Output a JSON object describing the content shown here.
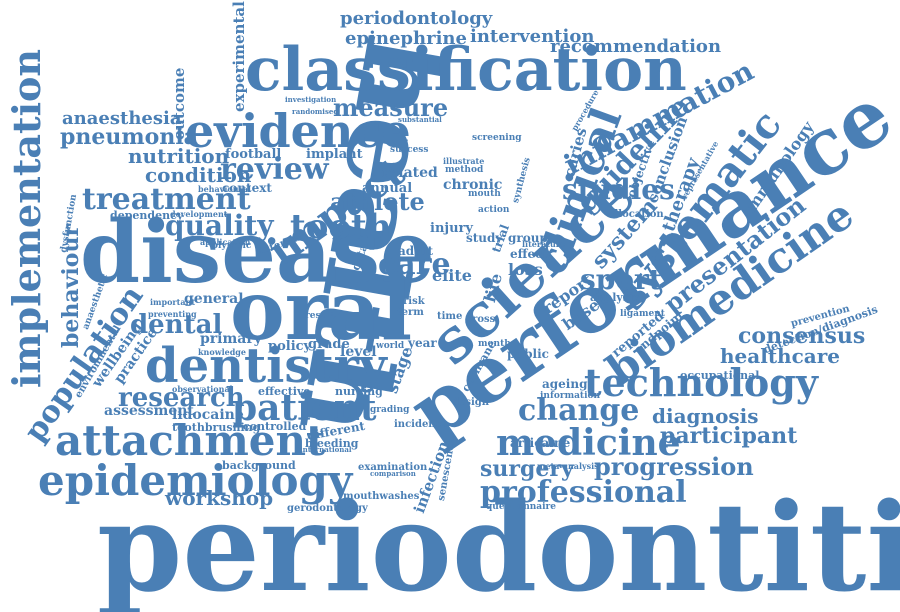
{
  "colors": {
    "word": "#4a7fb5",
    "background": "#ffffff"
  },
  "words": [
    {
      "id": "periodontitis",
      "text": "periodontitis"
    },
    {
      "id": "health",
      "text": "health"
    },
    {
      "id": "performance",
      "text": "performance"
    },
    {
      "id": "disease",
      "text": "disease"
    },
    {
      "id": "classification",
      "text": "classification"
    },
    {
      "id": "oral",
      "text": "oral"
    },
    {
      "id": "science",
      "text": "science"
    },
    {
      "id": "dentistry",
      "text": "dentistry"
    },
    {
      "id": "biomedicine",
      "text": "biomedicine"
    },
    {
      "id": "implementation",
      "text": "implementation"
    },
    {
      "id": "attachment",
      "text": "attachment"
    },
    {
      "id": "epidemiology",
      "text": "epidemiology"
    },
    {
      "id": "evidence",
      "text": "evidence"
    },
    {
      "id": "technology",
      "text": "technology"
    },
    {
      "id": "medicine",
      "text": "medicine"
    },
    {
      "id": "population",
      "text": "population"
    },
    {
      "id": "patient",
      "text": "patient"
    },
    {
      "id": "impact",
      "text": "impact"
    },
    {
      "id": "clinical",
      "text": "clinical"
    },
    {
      "id": "systematic",
      "text": "systematic"
    },
    {
      "id": "treatment",
      "text": "treatment"
    },
    {
      "id": "tooth",
      "text": "tooth"
    },
    {
      "id": "professional",
      "text": "professional"
    },
    {
      "id": "change",
      "text": "change"
    },
    {
      "id": "review",
      "text": "review"
    },
    {
      "id": "inflammation",
      "text": "inflammation"
    },
    {
      "id": "guideline",
      "text": "guideline"
    },
    {
      "id": "studies",
      "text": "studies"
    },
    {
      "id": "research",
      "text": "research"
    },
    {
      "id": "quality",
      "text": "quality"
    },
    {
      "id": "dental",
      "text": "dental"
    },
    {
      "id": "measure",
      "text": "measure"
    },
    {
      "id": "care",
      "text": "care"
    },
    {
      "id": "sport",
      "text": "sport"
    },
    {
      "id": "athlete",
      "text": "athlete"
    },
    {
      "id": "presentation",
      "text": "presentation"
    },
    {
      "id": "progression",
      "text": "progression"
    },
    {
      "id": "participant",
      "text": "participant"
    },
    {
      "id": "consensus",
      "text": "consensus"
    },
    {
      "id": "healthcare",
      "text": "healthcare"
    },
    {
      "id": "diagnosis",
      "text": "diagnosis"
    },
    {
      "id": "surgery",
      "text": "surgery"
    },
    {
      "id": "workshop",
      "text": "workshop"
    },
    {
      "id": "behaviour",
      "text": "behaviour"
    },
    {
      "id": "pneumonia",
      "text": "pneumonia"
    },
    {
      "id": "anaesthesia",
      "text": "anaesthesia"
    },
    {
      "id": "nutrition",
      "text": "nutrition"
    },
    {
      "id": "condition",
      "text": "condition"
    },
    {
      "id": "periodontology",
      "text": "periodontology"
    },
    {
      "id": "epinephrine",
      "text": "epinephrine"
    },
    {
      "id": "intervention",
      "text": "intervention"
    },
    {
      "id": "recommendation",
      "text": "recommendation"
    },
    {
      "id": "experimental",
      "text": "experimental"
    },
    {
      "id": "outcome",
      "text": "outcome"
    },
    {
      "id": "caries",
      "text": "caries"
    },
    {
      "id": "system",
      "text": "system"
    },
    {
      "id": "therapy",
      "text": "therapy"
    },
    {
      "id": "conclusion",
      "text": "conclusion"
    },
    {
      "id": "immunology",
      "text": "immunology"
    },
    {
      "id": "objective",
      "text": "objective"
    },
    {
      "id": "report",
      "text": "report"
    },
    {
      "id": "based",
      "text": "based"
    },
    {
      "id": "elite",
      "text": "elite"
    },
    {
      "id": "life",
      "text": "life"
    },
    {
      "id": "loss",
      "text": "loss"
    },
    {
      "id": "stage",
      "text": "stage"
    },
    {
      "id": "assessment",
      "text": "assessment"
    },
    {
      "id": "lidocaine",
      "text": "lidocaine"
    },
    {
      "id": "wellbeing",
      "text": "wellbeing"
    },
    {
      "id": "practice",
      "text": "practice"
    },
    {
      "id": "general",
      "text": "general"
    },
    {
      "id": "primary",
      "text": "primary"
    },
    {
      "id": "policy",
      "text": "policy"
    },
    {
      "id": "grade",
      "text": "grade"
    },
    {
      "id": "level",
      "text": "level"
    },
    {
      "id": "football",
      "text": "football"
    },
    {
      "id": "implant",
      "text": "implant"
    },
    {
      "id": "related",
      "text": "related"
    },
    {
      "id": "chronic",
      "text": "chronic"
    },
    {
      "id": "annual",
      "text": "annual"
    },
    {
      "id": "injury",
      "text": "injury"
    },
    {
      "id": "study",
      "text": "study"
    },
    {
      "id": "group",
      "text": "group"
    },
    {
      "id": "effect",
      "text": "effect"
    },
    {
      "id": "trial",
      "text": "trial"
    },
    {
      "id": "infection",
      "text": "infection"
    },
    {
      "id": "senescence",
      "text": "senescence"
    },
    {
      "id": "cochrane",
      "text": "cochrane"
    },
    {
      "id": "design",
      "text": "design"
    },
    {
      "id": "ageing",
      "text": "ageing"
    },
    {
      "id": "public",
      "text": "public"
    },
    {
      "id": "articaine",
      "text": "articaine"
    },
    {
      "id": "reported",
      "text": "reported"
    },
    {
      "id": "analysis",
      "text": "analysis"
    },
    {
      "id": "endpoint",
      "text": "endpoint"
    },
    {
      "id": "occupational",
      "text": "occupational"
    },
    {
      "id": "detection-diagnosis",
      "text": "detection/diagnosis"
    },
    {
      "id": "prevention",
      "text": "prevention"
    },
    {
      "id": "ligament",
      "text": "ligament"
    },
    {
      "id": "background",
      "text": "background"
    },
    {
      "id": "controlled",
      "text": "controlled"
    },
    {
      "id": "different",
      "text": "different"
    },
    {
      "id": "bleeding",
      "text": "bleeding"
    },
    {
      "id": "nursing",
      "text": "nursing"
    },
    {
      "id": "effective",
      "text": "effective"
    },
    {
      "id": "examination",
      "text": "examination"
    },
    {
      "id": "incidence",
      "text": "incidence"
    },
    {
      "id": "mouthwashes",
      "text": "mouthwashes"
    },
    {
      "id": "gerodontology",
      "text": "gerodontology"
    },
    {
      "id": "questionnaire",
      "text": "questionnaire"
    },
    {
      "id": "toothbrushing",
      "text": "toothbrushing"
    },
    {
      "id": "context",
      "text": "context"
    },
    {
      "id": "dependency",
      "text": "dependency"
    },
    {
      "id": "olympic",
      "text": "olympic"
    },
    {
      "id": "interval",
      "text": "interval"
    },
    {
      "id": "adult",
      "text": "adult"
    },
    {
      "id": "data",
      "text": "data"
    },
    {
      "id": "screening",
      "text": "screening"
    },
    {
      "id": "allocation",
      "text": "allocation"
    },
    {
      "id": "method",
      "text": "method"
    },
    {
      "id": "mouth",
      "text": "mouth"
    },
    {
      "id": "success",
      "text": "success"
    },
    {
      "id": "investigation",
      "text": "investigation"
    },
    {
      "id": "randomised",
      "text": "randomised"
    },
    {
      "id": "substantial",
      "text": "substantial"
    },
    {
      "id": "procedure",
      "text": "procedure"
    },
    {
      "id": "representative",
      "text": "representative"
    },
    {
      "id": "important",
      "text": "important"
    },
    {
      "id": "knowledge",
      "text": "knowledge"
    },
    {
      "id": "anaesthetic",
      "text": "anaesthetic"
    },
    {
      "id": "environmental",
      "text": "environmental"
    },
    {
      "id": "behavioural",
      "text": "behavioural"
    },
    {
      "id": "development",
      "text": "development"
    },
    {
      "id": "dysfunction",
      "text": "dysfunction"
    },
    {
      "id": "preventing",
      "text": "preventing"
    },
    {
      "id": "observational",
      "text": "observational"
    },
    {
      "id": "world",
      "text": "world"
    },
    {
      "id": "year",
      "text": "year"
    },
    {
      "id": "time",
      "text": "time"
    },
    {
      "id": "term",
      "text": "term"
    },
    {
      "id": "risk",
      "text": "risk"
    },
    {
      "id": "cross",
      "text": "cross"
    },
    {
      "id": "result",
      "text": "result"
    },
    {
      "id": "month",
      "text": "month"
    },
    {
      "id": "literature",
      "text": "literature"
    },
    {
      "id": "information",
      "text": "information"
    },
    {
      "id": "synthesis",
      "text": "synthesis"
    },
    {
      "id": "action",
      "text": "action"
    },
    {
      "id": "grading",
      "text": "grading"
    },
    {
      "id": "illustrate",
      "text": "illustrate"
    },
    {
      "id": "meta-analysis",
      "text": "meta-analysis"
    },
    {
      "id": "comparison",
      "text": "comparison"
    },
    {
      "id": "international",
      "text": "international"
    },
    {
      "id": "application",
      "text": "application"
    }
  ]
}
